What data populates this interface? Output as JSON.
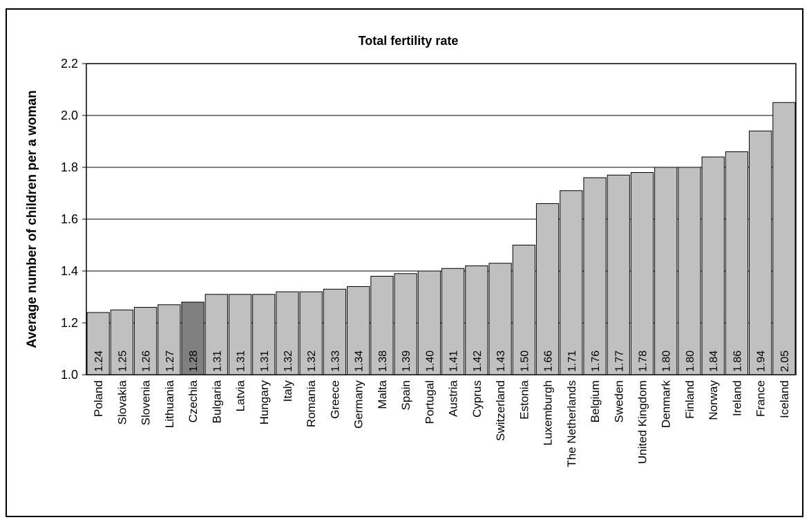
{
  "chart_data": {
    "type": "bar",
    "title": "Total fertility rate",
    "xlabel": "",
    "ylabel": "Average number of children per a woman",
    "ylim": [
      1.0,
      2.2
    ],
    "yticks": [
      "1.0",
      "1.2",
      "1.4",
      "1.6",
      "1.8",
      "2.0",
      "2.2"
    ],
    "grid": true,
    "categories": [
      "Poland",
      "Slovakia",
      "Slovenia",
      "Lithuania",
      "Czechia",
      "Bulgaria",
      "Latvia",
      "Hungary",
      "Italy",
      "Romania",
      "Greece",
      "Germany",
      "Malta",
      "Spain",
      "Portugal",
      "Austria",
      "Cyprus",
      "Switzerland",
      "Estonia",
      "Luxemburgh",
      "The Netherlands",
      "Belgium",
      "Sweden",
      "United Kingdom",
      "Denmark",
      "Finland",
      "Norway",
      "Ireland",
      "France",
      "Iceland"
    ],
    "values": [
      1.24,
      1.25,
      1.26,
      1.27,
      1.28,
      1.31,
      1.31,
      1.31,
      1.32,
      1.32,
      1.33,
      1.34,
      1.38,
      1.39,
      1.4,
      1.41,
      1.42,
      1.43,
      1.5,
      1.66,
      1.71,
      1.76,
      1.77,
      1.78,
      1.8,
      1.8,
      1.84,
      1.86,
      1.94,
      2.05
    ],
    "value_labels": [
      "1.24",
      "1.25",
      "1.26",
      "1.27",
      "1.28",
      "1.31",
      "1.31",
      "1.31",
      "1.32",
      "1.32",
      "1.33",
      "1.34",
      "1.38",
      "1.39",
      "1.40",
      "1.41",
      "1.42",
      "1.43",
      "1.50",
      "1.66",
      "1.71",
      "1.76",
      "1.77",
      "1.78",
      "1.80",
      "1.80",
      "1.84",
      "1.86",
      "1.94",
      "2.05"
    ],
    "highlight": "Czechia",
    "colors": {
      "bar": "#c0c0c0",
      "highlight": "#808080",
      "grid": "#000000"
    }
  }
}
